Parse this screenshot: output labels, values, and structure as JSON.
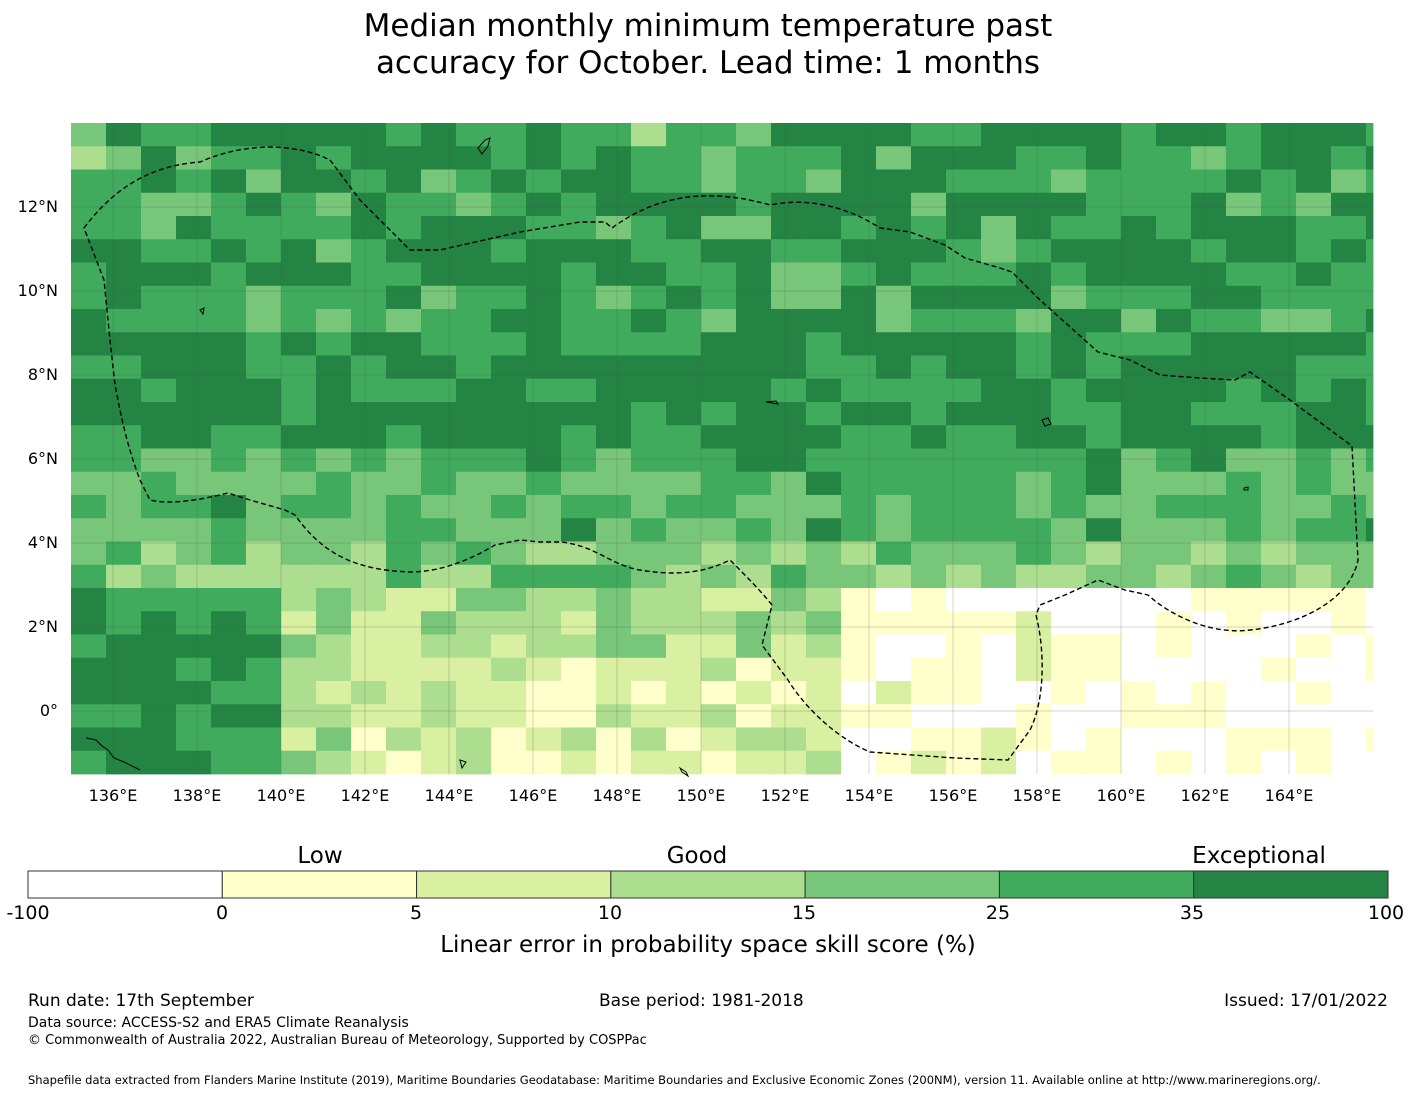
{
  "title_line1": "Median monthly minimum temperature past",
  "title_line2": "accuracy for October. Lead time: 1 months",
  "map": {
    "x_ticks": [
      "136°E",
      "138°E",
      "140°E",
      "142°E",
      "144°E",
      "146°E",
      "148°E",
      "150°E",
      "152°E",
      "154°E",
      "156°E",
      "158°E",
      "160°E",
      "162°E",
      "164°E"
    ],
    "y_ticks": [
      "12°N",
      "10°N",
      "8°N",
      "6°N",
      "4°N",
      "2°N",
      "0°"
    ],
    "lon_range": [
      135,
      166
    ],
    "lat_range": [
      -1.5,
      14
    ],
    "grid_note": "Skill category per 0.83° grid cell (0=white ... 6=darkest green)"
  },
  "colorbar": {
    "categories": [
      "Low",
      "Good",
      "Exceptional"
    ],
    "ticks": [
      "-100",
      "0",
      "5",
      "10",
      "15",
      "25",
      "35",
      "100"
    ],
    "colors": [
      "#ffffff",
      "#ffffcc",
      "#d9f0a3",
      "#addd8e",
      "#78c679",
      "#41ab5d",
      "#238443"
    ],
    "label": "Linear error in probability space skill score (%)"
  },
  "footer": {
    "run_date": "Run date: 17th September",
    "base_period": "Base period: 1981-2018",
    "issued": "Issued: 17/01/2022",
    "data_source": "Data source: ACCESS-S2 and ERA5 Climate Reanalysis",
    "copyright": "© Commonwealth of Australia 2022, Australian Bureau of Meteorology, Supported by COSPPac",
    "shapefile": "Shapefile data extracted from Flanders Marine Institute (2019), Maritime Boundaries Geodatabase: Maritime Boundaries and Exclusive Economic Zones (200NM), version 11. Available online at http://www.marineregions.org/."
  }
}
